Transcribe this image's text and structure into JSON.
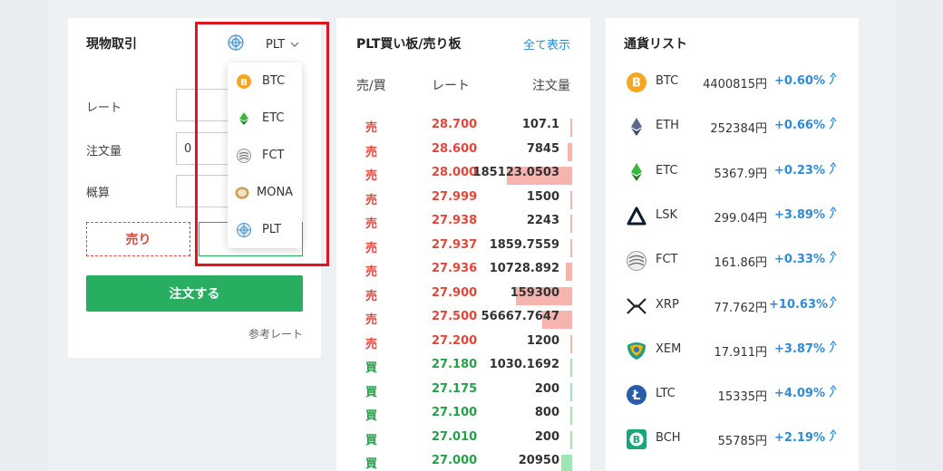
{
  "spot": {
    "title": "現物取引",
    "selected_currency": "PLT",
    "labels": {
      "rate": "レート",
      "quantity": "注文量",
      "estimate": "概算"
    },
    "quantity_value": "0",
    "sell_label": "売り",
    "order_label": "注文する",
    "ref_rate_label": "参考レート"
  },
  "dropdown": {
    "items": [
      {
        "label": "BTC",
        "icon": "btc-icon"
      },
      {
        "label": "ETC",
        "icon": "etc-icon"
      },
      {
        "label": "FCT",
        "icon": "fct-icon"
      },
      {
        "label": "MONA",
        "icon": "mona-icon"
      },
      {
        "label": "PLT",
        "icon": "plt-icon"
      }
    ]
  },
  "book": {
    "title": "PLT買い板/売り板",
    "show_all": "全て表示",
    "headers": {
      "side": "売/買",
      "rate": "レート",
      "qty": "注文量"
    },
    "rows": [
      {
        "side": "売",
        "rate": "28.700",
        "qty": "107.1",
        "depth": 0.0
      },
      {
        "side": "売",
        "rate": "28.600",
        "qty": "7845",
        "depth": 0.05
      },
      {
        "side": "売",
        "rate": "28.000",
        "qty": "185123.0503",
        "depth": 0.72
      },
      {
        "side": "売",
        "rate": "27.999",
        "qty": "1500",
        "depth": 0.01
      },
      {
        "side": "売",
        "rate": "27.938",
        "qty": "2243",
        "depth": 0.01
      },
      {
        "side": "売",
        "rate": "27.937",
        "qty": "1859.7559",
        "depth": 0.01
      },
      {
        "side": "売",
        "rate": "27.936",
        "qty": "10728.892",
        "depth": 0.07
      },
      {
        "side": "売",
        "rate": "27.900",
        "qty": "159300",
        "depth": 0.62
      },
      {
        "side": "売",
        "rate": "27.500",
        "qty": "56667.7647",
        "depth": 0.33
      },
      {
        "side": "売",
        "rate": "27.200",
        "qty": "1200",
        "depth": 0.01
      },
      {
        "side": "買",
        "rate": "27.180",
        "qty": "1030.1692",
        "depth": 0.01
      },
      {
        "side": "買",
        "rate": "27.175",
        "qty": "200",
        "depth": 0.0
      },
      {
        "side": "買",
        "rate": "27.100",
        "qty": "800",
        "depth": 0.01
      },
      {
        "side": "買",
        "rate": "27.010",
        "qty": "200",
        "depth": 0.0
      },
      {
        "side": "買",
        "rate": "27.000",
        "qty": "20950",
        "depth": 0.12
      }
    ]
  },
  "curlist": {
    "title": "通貨リスト",
    "items": [
      {
        "sym": "BTC",
        "price": "4400815円",
        "chg": "+0.60%",
        "icon": "btc-icon"
      },
      {
        "sym": "ETH",
        "price": "252384円",
        "chg": "+0.66%",
        "icon": "eth-icon"
      },
      {
        "sym": "ETC",
        "price": "5367.9円",
        "chg": "+0.23%",
        "icon": "etc-icon"
      },
      {
        "sym": "LSK",
        "price": "299.04円",
        "chg": "+3.89%",
        "icon": "lsk-icon"
      },
      {
        "sym": "FCT",
        "price": "161.86円",
        "chg": "+0.33%",
        "icon": "fct-icon"
      },
      {
        "sym": "XRP",
        "price": "77.762円",
        "chg": "+10.63%",
        "icon": "xrp-icon"
      },
      {
        "sym": "XEM",
        "price": "17.911円",
        "chg": "+3.87%",
        "icon": "xem-icon"
      },
      {
        "sym": "LTC",
        "price": "15335円",
        "chg": "+4.09%",
        "icon": "ltc-icon"
      },
      {
        "sym": "BCH",
        "price": "55785円",
        "chg": "+2.19%",
        "icon": "bch-icon"
      }
    ],
    "trend_icon": "trend-up-icon"
  },
  "colors": {
    "sell": "#e0483c",
    "buy": "#27a04a",
    "accent": "#2f8bd6",
    "highlight": "#e0141e"
  }
}
